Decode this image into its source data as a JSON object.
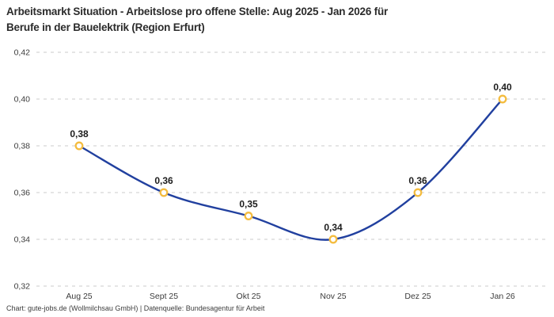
{
  "title": {
    "line1": "Arbeitsmarkt Situation - Arbeitslose pro offene Stelle: Aug 2025 - Jan 2026 für",
    "line2": "Berufe in der Bauelektrik (Region Erfurt)"
  },
  "footer": "Chart: gute-jobs.de (Wollmilchsau GmbH) | Datenquelle: Bundesagentur für Arbeit",
  "chart_data": {
    "type": "line",
    "title": "Arbeitsmarkt Situation - Arbeitslose pro offene Stelle: Aug 2025 - Jan 2026 für Berufe in der Bauelektrik (Region Erfurt)",
    "categories": [
      "Aug 25",
      "Sept 25",
      "Okt 25",
      "Nov 25",
      "Dez 25",
      "Jan 26"
    ],
    "values": [
      0.38,
      0.36,
      0.35,
      0.34,
      0.36,
      0.4
    ],
    "point_labels": [
      "0,38",
      "0,36",
      "0,35",
      "0,34",
      "0,36",
      "0,40"
    ],
    "xlabel": "",
    "ylabel": "",
    "ylim": [
      0.32,
      0.42
    ],
    "y_tick_step": 0.02,
    "y_tick_labels": [
      "0,32",
      "0,34",
      "0,36",
      "0,38",
      "0,40",
      "0,42"
    ],
    "grid": "dashed-horizontal",
    "legend": "none",
    "colors": {
      "line": "#21409f",
      "marker_stroke": "#f4bc3f",
      "marker_fill": "#ffffff",
      "grid": "#cbcbcb",
      "tick_text": "#3c3c3c",
      "point_label_text": "#1d1d1d"
    }
  }
}
